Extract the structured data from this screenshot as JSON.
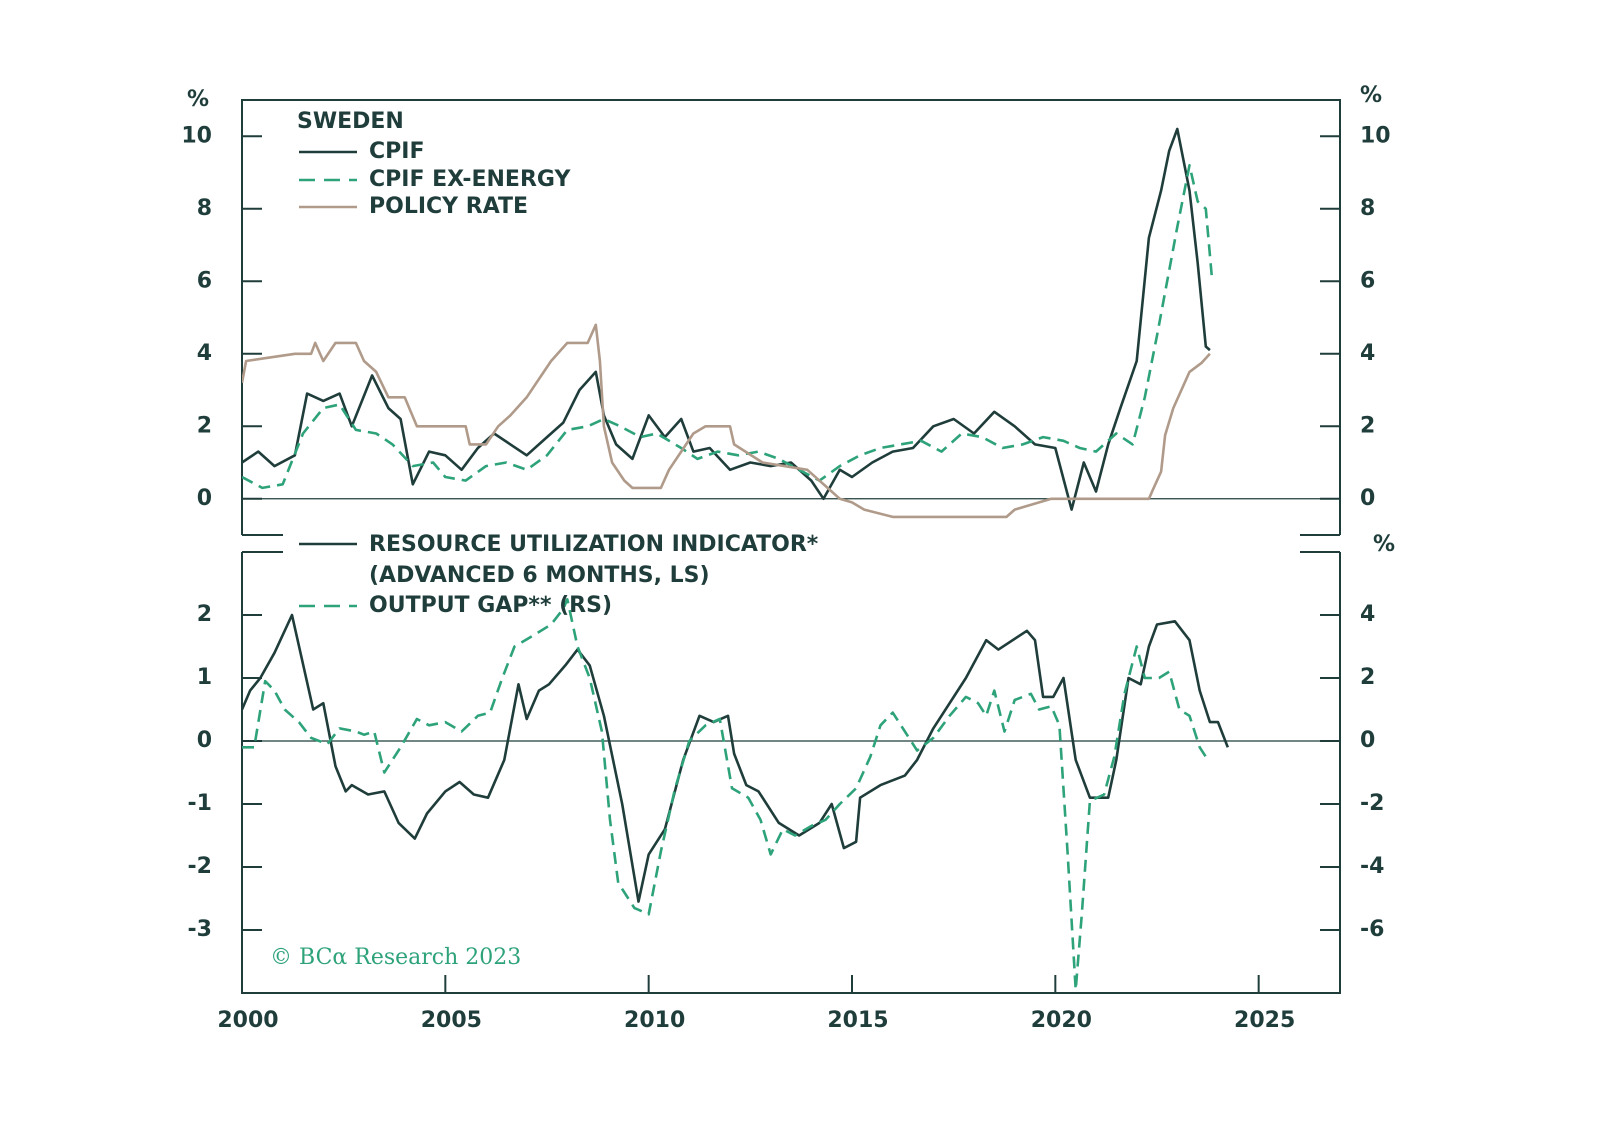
{
  "chart_data": [
    {
      "type": "line",
      "title": "SWEDEN",
      "ylabel": "%",
      "y2label": "%",
      "xlim": [
        2000,
        2027
      ],
      "ylim": [
        -1,
        11
      ],
      "yticks": [
        0,
        2,
        4,
        6,
        8,
        10
      ],
      "y2lim": [
        -1,
        11
      ],
      "y2ticks": [
        0,
        2,
        4,
        6,
        8,
        10
      ],
      "series": [
        {
          "name": "CPIF",
          "color": "#1f3d3a",
          "style": "solid",
          "x": [
            2000,
            2000.4,
            2000.8,
            2001.3,
            2001.6,
            2002,
            2002.4,
            2002.7,
            2003.2,
            2003.6,
            2003.9,
            2004.2,
            2004.6,
            2005,
            2005.4,
            2005.8,
            2006.2,
            2006.6,
            2007,
            2007.5,
            2007.9,
            2008.3,
            2008.7,
            2008.9,
            2009.2,
            2009.6,
            2010,
            2010.4,
            2010.8,
            2011.1,
            2011.5,
            2012,
            2012.5,
            2013,
            2013.5,
            2014,
            2014.3,
            2014.7,
            2015,
            2015.5,
            2016,
            2016.5,
            2017,
            2017.5,
            2018,
            2018.5,
            2019,
            2019.5,
            2020,
            2020.4,
            2020.7,
            2021,
            2021.3,
            2021.6,
            2022,
            2022.3,
            2022.6,
            2022.8,
            2023,
            2023.3,
            2023.5,
            2023.7,
            2023.8
          ],
          "values": [
            1.0,
            1.3,
            0.9,
            1.2,
            2.9,
            2.7,
            2.9,
            2.0,
            3.4,
            2.5,
            2.2,
            0.4,
            1.3,
            1.2,
            0.8,
            1.4,
            1.8,
            1.5,
            1.2,
            1.7,
            2.1,
            3.0,
            3.5,
            2.3,
            1.5,
            1.1,
            2.3,
            1.7,
            2.2,
            1.3,
            1.4,
            0.8,
            1.0,
            0.9,
            1.0,
            0.5,
            0.0,
            0.8,
            0.6,
            1.0,
            1.3,
            1.4,
            2.0,
            2.2,
            1.8,
            2.4,
            2.0,
            1.5,
            1.4,
            -0.3,
            1.0,
            0.2,
            1.5,
            2.5,
            3.8,
            7.2,
            8.5,
            9.6,
            10.2,
            8.5,
            6.5,
            4.2,
            4.1
          ]
        },
        {
          "name": "CPIF EX-ENERGY",
          "color": "#2ea37a",
          "style": "dashed",
          "x": [
            2000,
            2000.5,
            2001,
            2001.5,
            2002,
            2002.4,
            2002.8,
            2003.3,
            2003.7,
            2004.2,
            2004.7,
            2005,
            2005.5,
            2006,
            2006.5,
            2007,
            2007.5,
            2008,
            2008.5,
            2008.9,
            2009.3,
            2009.8,
            2010.2,
            2010.8,
            2011.2,
            2011.7,
            2012.2,
            2012.7,
            2013.2,
            2013.7,
            2014.2,
            2014.7,
            2015.2,
            2015.7,
            2016.2,
            2016.7,
            2017.2,
            2017.7,
            2018.2,
            2018.7,
            2019.2,
            2019.7,
            2020.2,
            2020.6,
            2021,
            2021.5,
            2021.9,
            2022.2,
            2022.5,
            2022.8,
            2023,
            2023.3,
            2023.5,
            2023.7,
            2023.85
          ],
          "values": [
            0.6,
            0.3,
            0.4,
            1.8,
            2.5,
            2.6,
            1.9,
            1.8,
            1.5,
            0.9,
            1.0,
            0.6,
            0.5,
            0.9,
            1.0,
            0.8,
            1.2,
            1.9,
            2.0,
            2.2,
            2.0,
            1.7,
            1.8,
            1.4,
            1.1,
            1.3,
            1.2,
            1.3,
            1.1,
            0.8,
            0.5,
            0.9,
            1.2,
            1.4,
            1.5,
            1.6,
            1.3,
            1.8,
            1.7,
            1.4,
            1.5,
            1.7,
            1.6,
            1.4,
            1.3,
            1.8,
            1.5,
            2.8,
            4.5,
            6.3,
            7.5,
            9.2,
            8.2,
            8.0,
            6.1
          ]
        },
        {
          "name": "POLICY RATE",
          "color": "#b09a8a",
          "style": "solid",
          "x": [
            2000,
            2000.1,
            2001.3,
            2001.7,
            2001.8,
            2002,
            2002.3,
            2002.8,
            2003,
            2003.3,
            2003.6,
            2004,
            2004.3,
            2005.5,
            2005.6,
            2006,
            2006.3,
            2006.6,
            2007,
            2007.3,
            2007.6,
            2008,
            2008.5,
            2008.7,
            2008.8,
            2008.9,
            2009.1,
            2009.4,
            2009.6,
            2010.3,
            2010.5,
            2010.8,
            2011.1,
            2011.4,
            2012,
            2012.1,
            2012.8,
            2013.9,
            2014.4,
            2014.7,
            2015,
            2015.3,
            2016,
            2018.8,
            2019,
            2019.9,
            2022.3,
            2022.4,
            2022.6,
            2022.7,
            2022.9,
            2023.1,
            2023.3,
            2023.6,
            2023.8
          ],
          "values": [
            3.2,
            3.8,
            4.0,
            4.0,
            4.3,
            3.8,
            4.3,
            4.3,
            3.8,
            3.5,
            2.8,
            2.8,
            2.0,
            2.0,
            1.5,
            1.5,
            2.0,
            2.3,
            2.8,
            3.3,
            3.8,
            4.3,
            4.3,
            4.8,
            3.8,
            2.0,
            1.0,
            0.5,
            0.3,
            0.3,
            0.8,
            1.3,
            1.8,
            2.0,
            2.0,
            1.5,
            1.0,
            0.8,
            0.3,
            0.0,
            -0.1,
            -0.3,
            -0.5,
            -0.5,
            -0.3,
            0.0,
            0.0,
            0.25,
            0.75,
            1.75,
            2.5,
            3.0,
            3.5,
            3.75,
            4.0
          ]
        }
      ]
    },
    {
      "type": "line",
      "y2label": "%",
      "annotation": "© BCα Research 2023",
      "xlim": [
        2000,
        2027
      ],
      "xticks": [
        2000,
        2005,
        2010,
        2015,
        2020,
        2025
      ],
      "ylim": [
        -4,
        3
      ],
      "yticks": [
        2,
        1,
        0,
        -1,
        -2,
        -3
      ],
      "y2lim": [
        -8,
        6
      ],
      "y2ticks": [
        4,
        2,
        0,
        -2,
        -4,
        -6
      ],
      "series": [
        {
          "name": "RESOURCE UTILIZATION INDICATOR* (ADVANCED 6 MONTHS, LS)",
          "color": "#1f3d3a",
          "style": "solid",
          "x": [
            2000,
            2000.2,
            2000.45,
            2000.8,
            2001.23,
            2001.75,
            2002.0,
            2002.3,
            2002.55,
            2002.7,
            2003.1,
            2003.5,
            2003.85,
            2004.25,
            2004.55,
            2005.0,
            2005.35,
            2005.7,
            2006.05,
            2006.45,
            2006.8,
            2007.0,
            2007.3,
            2007.55,
            2007.95,
            2008.25,
            2008.55,
            2008.9,
            2009.35,
            2009.75,
            2010.0,
            2010.4,
            2010.85,
            2011.25,
            2011.6,
            2011.95,
            2012.1,
            2012.4,
            2012.7,
            2013.2,
            2013.7,
            2014.2,
            2014.5,
            2014.8,
            2015.1,
            2015.2,
            2015.7,
            2016.3,
            2016.6,
            2017.0,
            2017.8,
            2018.3,
            2018.6,
            2019.3,
            2019.5,
            2019.7,
            2019.95,
            2020.2,
            2020.5,
            2020.85,
            2021.3,
            2021.5,
            2021.8,
            2022.1,
            2022.3,
            2022.5,
            2022.94,
            2023.3,
            2023.55,
            2023.8,
            2024.0,
            2024.24
          ],
          "values": [
            0.5,
            0.8,
            1.0,
            1.4,
            2.0,
            0.5,
            0.6,
            -0.4,
            -0.8,
            -0.7,
            -0.85,
            -0.8,
            -1.3,
            -1.55,
            -1.15,
            -0.8,
            -0.65,
            -0.85,
            -0.9,
            -0.3,
            0.9,
            0.35,
            0.8,
            0.9,
            1.2,
            1.45,
            1.2,
            0.4,
            -1.0,
            -2.55,
            -1.8,
            -1.4,
            -0.3,
            0.4,
            0.3,
            0.4,
            -0.2,
            -0.7,
            -0.8,
            -1.3,
            -1.5,
            -1.3,
            -1.0,
            -1.7,
            -1.6,
            -0.9,
            -0.7,
            -0.55,
            -0.3,
            0.2,
            1.0,
            1.6,
            1.45,
            1.75,
            1.6,
            0.7,
            0.7,
            1.0,
            -0.3,
            -0.9,
            -0.9,
            -0.3,
            1.0,
            0.9,
            1.5,
            1.85,
            1.9,
            1.6,
            0.8,
            0.3,
            0.3,
            -0.1
          ]
        },
        {
          "name": "OUTPUT GAP** (RS)",
          "color": "#2ea37a",
          "style": "dashed",
          "axis": "y2",
          "x": [
            2000,
            2000.3,
            2000.57,
            2000.8,
            2001.05,
            2001.4,
            2001.7,
            2002.1,
            2002.4,
            2002.8,
            2003.0,
            2003.25,
            2003.5,
            2003.9,
            2004.3,
            2004.6,
            2005.0,
            2005.4,
            2005.8,
            2006.1,
            2006.4,
            2006.7,
            2007.1,
            2007.6,
            2007.9,
            2008.0,
            2008.25,
            2008.55,
            2008.85,
            2009.05,
            2009.25,
            2009.65,
            2010.0,
            2010.3,
            2010.65,
            2011.0,
            2011.4,
            2011.75,
            2012.05,
            2012.45,
            2012.75,
            2013.0,
            2013.3,
            2013.6,
            2014.0,
            2014.35,
            2014.7,
            2015.1,
            2015.45,
            2015.7,
            2016.0,
            2016.3,
            2016.6,
            2017.0,
            2017.4,
            2017.8,
            2018.1,
            2018.3,
            2018.5,
            2018.75,
            2019.0,
            2019.4,
            2019.6,
            2019.9,
            2020.1,
            2020.3,
            2020.5,
            2020.65,
            2020.85,
            2021.2,
            2021.45,
            2021.7,
            2022.0,
            2022.2,
            2022.55,
            2022.8,
            2023.05,
            2023.3,
            2023.55,
            2023.7
          ],
          "values": [
            -0.2,
            -0.2,
            1.9,
            1.6,
            1.0,
            0.6,
            0.1,
            -0.1,
            0.4,
            0.3,
            0.2,
            0.3,
            -1.0,
            -0.2,
            0.7,
            0.5,
            0.6,
            0.3,
            0.8,
            0.9,
            2.0,
            3.0,
            3.3,
            3.7,
            4.2,
            4.5,
            3.0,
            2.0,
            0.3,
            -2.5,
            -4.5,
            -5.3,
            -5.5,
            -3.5,
            -1.5,
            0,
            0.5,
            0.7,
            -1.5,
            -1.8,
            -2.5,
            -3.6,
            -2.8,
            -3.0,
            -2.7,
            -2.5,
            -2.0,
            -1.5,
            -0.5,
            0.5,
            0.9,
            0.3,
            -0.3,
            0.1,
            0.8,
            1.4,
            1.2,
            0.8,
            1.6,
            0.3,
            1.3,
            1.5,
            1.0,
            1.1,
            0.5,
            -3.5,
            -7.9,
            -5.5,
            -1.9,
            -1.7,
            -0.5,
            1.5,
            3.0,
            2.0,
            2.0,
            2.2,
            1.0,
            0.8,
            -0.2,
            -0.5
          ]
        }
      ]
    }
  ]
}
